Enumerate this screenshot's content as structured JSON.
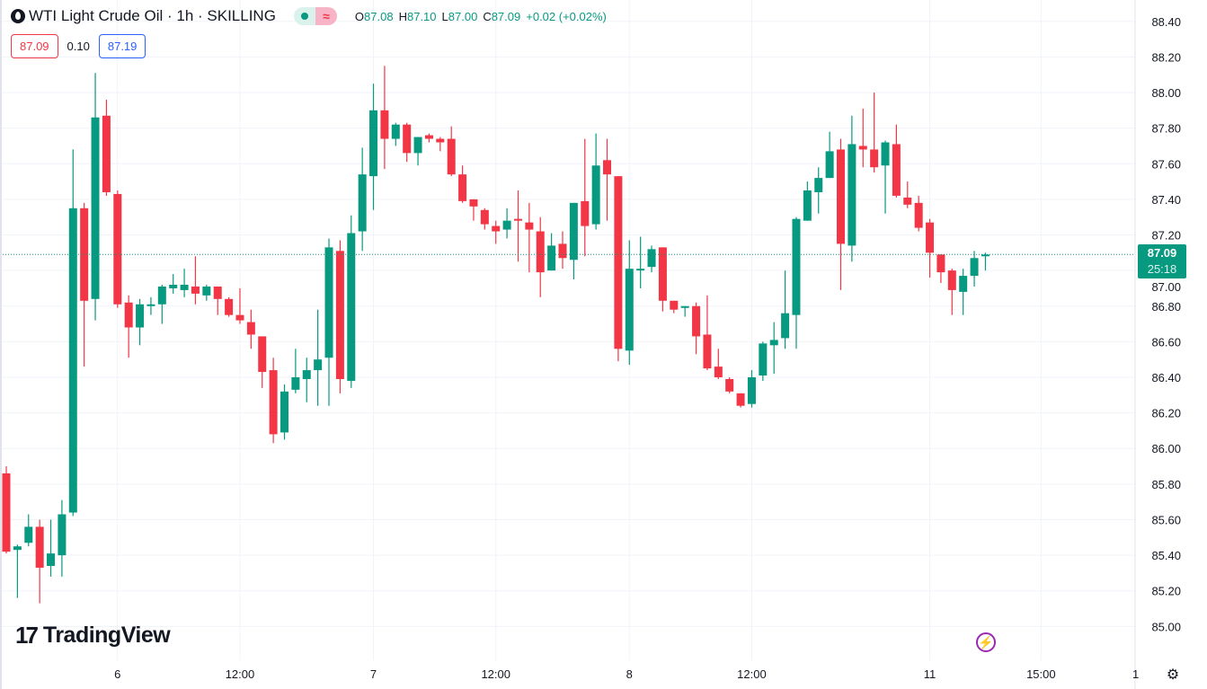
{
  "header": {
    "title": "WTI Light Crude Oil · 1h · SKILLING",
    "badge_market_icon": "dot-icon",
    "badge_delay_icon": "≈",
    "ohlc": {
      "o_label": "O",
      "o": "87.08",
      "h_label": "H",
      "h": "87.10",
      "l_label": "L",
      "l": "87.00",
      "c_label": "C",
      "c": "87.09",
      "change": "+0.02 (+0.02%)"
    },
    "sell_price": "87.09",
    "spread": "0.10",
    "buy_price": "87.19"
  },
  "last_price": {
    "price": "87.09",
    "countdown": "25:18"
  },
  "branding": {
    "logo_text": "TradingView",
    "logo_mark": "17"
  },
  "icons": {
    "bolt": "⚡",
    "settings": "⚙"
  },
  "colors": {
    "up": "#089981",
    "down": "#F23645",
    "grid": "#F0F3FA",
    "last_line": "#089981"
  },
  "chart_data": {
    "type": "candlestick",
    "title": "WTI Light Crude Oil · 1h · SKILLING",
    "fields": [
      "open",
      "high",
      "low",
      "close"
    ],
    "candles": [
      [
        85.86,
        85.9,
        85.41,
        85.42
      ],
      [
        85.43,
        85.46,
        85.16,
        85.45
      ],
      [
        85.47,
        85.63,
        85.45,
        85.56
      ],
      [
        85.56,
        85.6,
        85.13,
        85.33
      ],
      [
        85.34,
        85.6,
        85.28,
        85.41
      ],
      [
        85.4,
        85.71,
        85.28,
        85.63
      ],
      [
        85.64,
        87.68,
        85.62,
        87.35
      ],
      [
        87.35,
        87.38,
        86.46,
        86.83
      ],
      [
        86.84,
        88.11,
        86.72,
        87.86
      ],
      [
        87.87,
        87.96,
        87.42,
        87.44
      ],
      [
        87.43,
        87.45,
        86.79,
        86.81
      ],
      [
        86.82,
        86.86,
        86.51,
        86.68
      ],
      [
        86.68,
        86.84,
        86.58,
        86.81
      ],
      [
        86.8,
        86.85,
        86.75,
        86.81
      ],
      [
        86.81,
        86.92,
        86.7,
        86.91
      ],
      [
        86.9,
        86.98,
        86.87,
        86.92
      ],
      [
        86.89,
        87.01,
        86.85,
        86.92
      ],
      [
        86.91,
        87.08,
        86.81,
        86.87
      ],
      [
        86.86,
        86.92,
        86.83,
        86.91
      ],
      [
        86.91,
        86.91,
        86.75,
        86.84
      ],
      [
        86.84,
        86.85,
        86.74,
        86.75
      ],
      [
        86.75,
        86.9,
        86.7,
        86.72
      ],
      [
        86.71,
        86.78,
        86.56,
        86.64
      ],
      [
        86.63,
        86.63,
        86.34,
        86.43
      ],
      [
        86.44,
        86.51,
        86.03,
        86.08
      ],
      [
        86.09,
        86.36,
        86.05,
        86.32
      ],
      [
        86.33,
        86.56,
        86.31,
        86.4
      ],
      [
        86.39,
        86.51,
        86.26,
        86.44
      ],
      [
        86.44,
        86.78,
        86.24,
        86.5
      ],
      [
        86.51,
        87.18,
        86.24,
        87.13
      ],
      [
        87.11,
        87.17,
        86.31,
        86.39
      ],
      [
        86.38,
        87.31,
        86.34,
        87.21
      ],
      [
        87.22,
        87.69,
        87.11,
        87.54
      ],
      [
        87.53,
        88.05,
        87.34,
        87.9
      ],
      [
        87.9,
        88.15,
        87.57,
        87.74
      ],
      [
        87.74,
        87.83,
        87.7,
        87.82
      ],
      [
        87.82,
        87.83,
        87.61,
        87.66
      ],
      [
        87.66,
        87.75,
        87.59,
        87.75
      ],
      [
        87.76,
        87.77,
        87.72,
        87.74
      ],
      [
        87.74,
        87.75,
        87.67,
        87.72
      ],
      [
        87.74,
        87.81,
        87.53,
        87.54
      ],
      [
        87.54,
        87.59,
        87.38,
        87.39
      ],
      [
        87.4,
        87.4,
        87.28,
        87.36
      ],
      [
        87.34,
        87.35,
        87.23,
        87.26
      ],
      [
        87.25,
        87.28,
        87.15,
        87.22
      ],
      [
        87.23,
        87.35,
        87.18,
        87.28
      ],
      [
        87.29,
        87.45,
        87.05,
        87.28
      ],
      [
        87.27,
        87.38,
        86.99,
        87.23
      ],
      [
        87.22,
        87.3,
        86.85,
        86.99
      ],
      [
        87.0,
        87.21,
        87.0,
        87.14
      ],
      [
        87.15,
        87.22,
        87.01,
        87.07
      ],
      [
        87.06,
        87.38,
        86.95,
        87.38
      ],
      [
        87.39,
        87.74,
        87.08,
        87.25
      ],
      [
        87.26,
        87.77,
        87.23,
        87.59
      ],
      [
        87.62,
        87.74,
        87.28,
        87.54
      ],
      [
        87.53,
        87.53,
        86.49,
        86.56
      ],
      [
        86.55,
        87.17,
        86.47,
        87.01
      ],
      [
        87.0,
        87.19,
        86.9,
        87.01
      ],
      [
        87.02,
        87.14,
        86.99,
        87.12
      ],
      [
        87.13,
        87.13,
        86.77,
        86.83
      ],
      [
        86.83,
        86.83,
        86.76,
        86.78
      ],
      [
        86.79,
        86.8,
        86.74,
        86.8
      ],
      [
        86.8,
        86.82,
        86.53,
        86.63
      ],
      [
        86.64,
        86.86,
        86.44,
        86.45
      ],
      [
        86.46,
        86.56,
        86.39,
        86.4
      ],
      [
        86.39,
        86.4,
        86.31,
        86.32
      ],
      [
        86.31,
        86.31,
        86.23,
        86.24
      ],
      [
        86.25,
        86.44,
        86.23,
        86.4
      ],
      [
        86.41,
        86.6,
        86.38,
        86.59
      ],
      [
        86.58,
        86.71,
        86.42,
        86.61
      ],
      [
        86.62,
        87.0,
        86.56,
        86.76
      ],
      [
        86.75,
        87.3,
        86.56,
        87.29
      ],
      [
        87.28,
        87.5,
        87.28,
        87.45
      ],
      [
        87.44,
        87.58,
        87.32,
        87.52
      ],
      [
        87.52,
        87.78,
        87.52,
        87.67
      ],
      [
        87.68,
        87.74,
        86.89,
        87.15
      ],
      [
        87.14,
        87.87,
        87.05,
        87.71
      ],
      [
        87.7,
        87.91,
        87.58,
        87.68
      ],
      [
        87.68,
        88.0,
        87.55,
        87.58
      ],
      [
        87.59,
        87.73,
        87.32,
        87.72
      ],
      [
        87.71,
        87.82,
        87.41,
        87.42
      ],
      [
        87.41,
        87.5,
        87.35,
        87.37
      ],
      [
        87.38,
        87.42,
        87.22,
        87.24
      ],
      [
        87.27,
        87.29,
        86.96,
        87.1
      ],
      [
        87.09,
        87.09,
        86.93,
        86.99
      ],
      [
        87.0,
        87.01,
        86.75,
        86.89
      ],
      [
        86.88,
        87.01,
        86.75,
        86.97
      ],
      [
        86.97,
        87.11,
        86.91,
        87.07
      ],
      [
        87.08,
        87.1,
        87.0,
        87.09
      ]
    ],
    "x_ticks": [
      {
        "label": "6",
        "index": 10
      },
      {
        "label": "12:00",
        "index": 21
      },
      {
        "label": "7",
        "index": 33
      },
      {
        "label": "12:00",
        "index": 44
      },
      {
        "label": "8",
        "index": 56
      },
      {
        "label": "12:00",
        "index": 67
      },
      {
        "label": "11",
        "index": 83
      },
      {
        "label": "15:00",
        "index": 93
      },
      {
        "label": "1",
        "index": 101.5
      }
    ],
    "y_ticks": [
      "88.40",
      "88.20",
      "88.00",
      "87.80",
      "87.60",
      "87.40",
      "87.20",
      "87.00",
      "86.80",
      "86.60",
      "86.40",
      "86.20",
      "86.00",
      "85.80",
      "85.60",
      "85.40",
      "85.20",
      "85.00"
    ],
    "ylim": [
      84.81,
      88.52
    ],
    "last_value": 87.09,
    "grid": true,
    "xlabel": "",
    "ylabel": ""
  }
}
